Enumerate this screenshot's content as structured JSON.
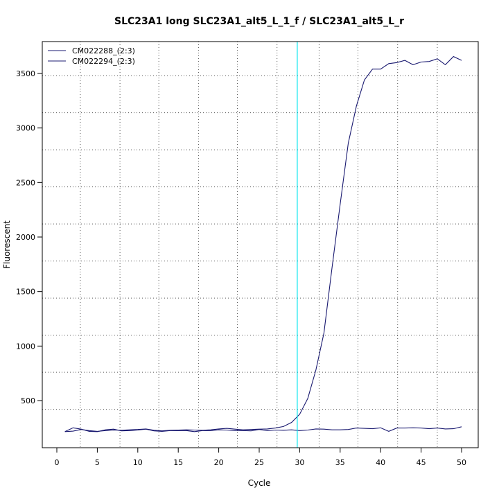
{
  "chart_data": {
    "type": "line",
    "title": "SLC23A1 long SLC23A1_alt5_L_1_f / SLC23A1_alt5_L_r",
    "xlabel": "Cycle",
    "ylabel": "Fluorescent",
    "xlim": [
      1,
      50
    ],
    "ylim": [
      190,
      3720
    ],
    "x_ticks": [
      0,
      5,
      10,
      15,
      20,
      25,
      30,
      35,
      40,
      45,
      50
    ],
    "y_ticks": [
      500,
      1000,
      1500,
      2000,
      2500,
      3000,
      3500
    ],
    "x_grid": [
      2.9,
      7.8,
      12.6,
      17.5,
      22.3,
      27.2,
      32.4,
      37.2,
      42.1,
      47.0
    ],
    "y_grid": [
      420,
      760,
      1100,
      1440,
      1780,
      2120,
      2460,
      2800,
      3140,
      3480
    ],
    "threshold_x": 29.7,
    "grid": true,
    "legend_position": "top-left",
    "colors": {
      "series": "#191970",
      "threshold": "#00e5ee",
      "grid": "#555555"
    },
    "series": [
      {
        "name": "CM022288_(2:3)",
        "values": [
          215,
          220,
          235,
          225,
          218,
          225,
          230,
          228,
          232,
          235,
          240,
          228,
          222,
          228,
          230,
          232,
          230,
          228,
          232,
          240,
          245,
          238,
          232,
          235,
          238,
          240,
          248,
          262,
          300,
          375,
          520,
          780,
          1120,
          1720,
          2300,
          2860,
          3200,
          3440,
          3540,
          3540,
          3590,
          3600,
          3620,
          3580,
          3605,
          3610,
          3635,
          3580,
          3655,
          3620
        ]
      },
      {
        "name": "CM022294_(2:3)",
        "values": [
          215,
          250,
          238,
          218,
          215,
          232,
          238,
          222,
          225,
          230,
          238,
          222,
          218,
          225,
          225,
          225,
          215,
          225,
          225,
          232,
          230,
          225,
          225,
          222,
          235,
          225,
          230,
          228,
          232,
          225,
          230,
          240,
          238,
          232,
          232,
          235,
          248,
          245,
          242,
          250,
          218,
          248,
          248,
          250,
          248,
          242,
          248,
          240,
          242,
          260
        ]
      }
    ]
  }
}
